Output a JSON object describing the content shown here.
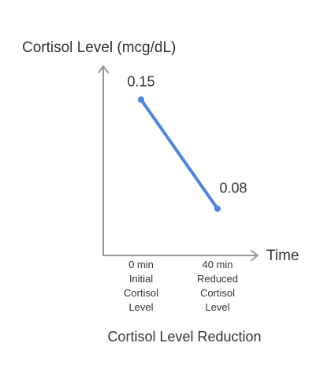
{
  "chart_data": {
    "type": "line",
    "title": "Cortisol Level Reduction",
    "xlabel": "Time",
    "ylabel": "Cortisol Level (mcg/dL)",
    "categories": [
      [
        "0 min",
        "Initial",
        "Cortisol",
        "Level"
      ],
      [
        "40 min",
        "Reduced",
        "Cortisol",
        "Level"
      ]
    ],
    "values": [
      0.15,
      0.08
    ],
    "data_labels": [
      "0.15",
      "0.08"
    ],
    "ylim": [
      0.05,
      0.18
    ],
    "grid": false,
    "legend": "none",
    "line_color": "#4a86e0"
  }
}
